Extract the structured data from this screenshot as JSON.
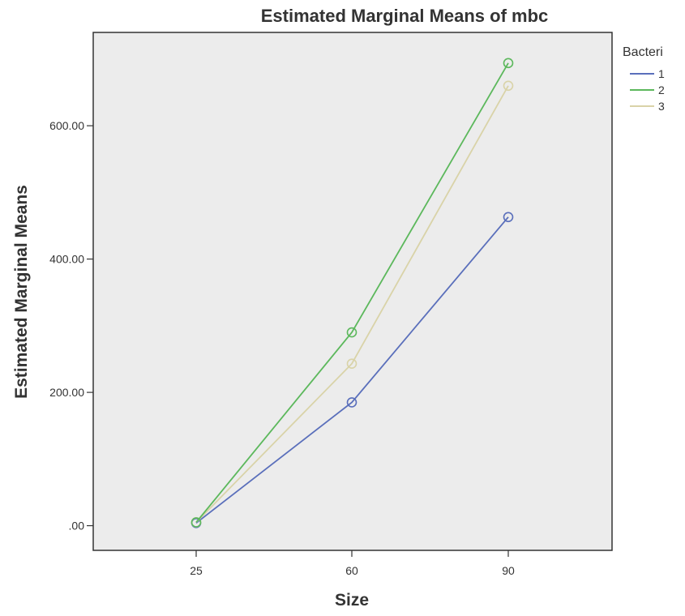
{
  "chart_data": {
    "type": "line",
    "title": "Estimated Marginal Means of mbc",
    "xlabel": "Size",
    "ylabel": "Estimated Marginal Means",
    "categories": [
      "25",
      "60",
      "90"
    ],
    "y_ticks": [
      ".00",
      "200.00",
      "400.00",
      "600.00"
    ],
    "y_tick_values": [
      0,
      200,
      400,
      600
    ],
    "ylim": [
      -37,
      740
    ],
    "grid": false,
    "legend": {
      "title": "Bacteri",
      "placement": "right"
    },
    "series": [
      {
        "name": "1",
        "color": "#5a6fbb",
        "values": [
          4,
          185,
          463
        ]
      },
      {
        "name": "2",
        "color": "#5cb85c",
        "values": [
          5,
          290,
          694
        ]
      },
      {
        "name": "3",
        "color": "#d9d3a8",
        "values": [
          5,
          243,
          660
        ]
      }
    ],
    "plot_background": "#ececec"
  }
}
